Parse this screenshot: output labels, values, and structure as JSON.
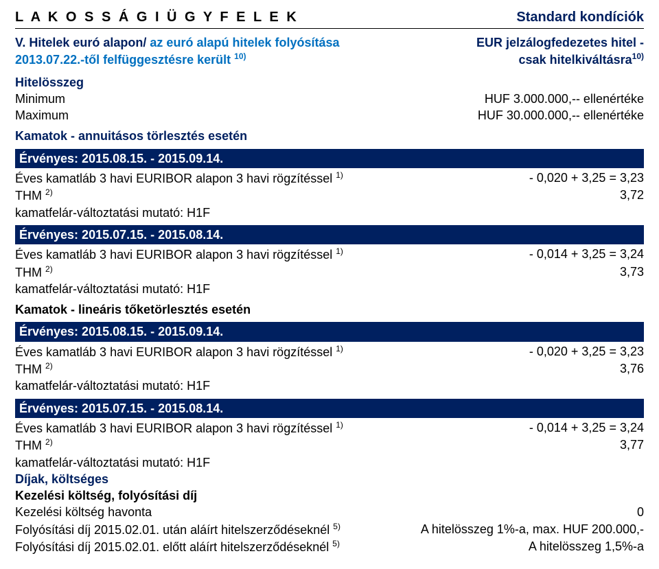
{
  "colors": {
    "dark_blue": "#002060",
    "blue": "#0070c0",
    "text": "#000000",
    "white": "#ffffff"
  },
  "header": {
    "left": "L A K O S S Á G I  Ü G Y F E L E K",
    "right": "Standard kondíciók"
  },
  "intro": {
    "left_line1_a": "V. Hitelek euró alapon/",
    "left_line1_b": "az euró alapú hitelek folyósítása",
    "left_line2_a": "2013.07.22.-től felfüggesztésre került",
    "left_line2_sup": "10)",
    "right_line1": "EUR jelzálogfedezetes hitel -",
    "right_line2_a": "csak hitelkiváltásra",
    "right_line2_sup": "10)"
  },
  "amount": {
    "title": "Hitelösszeg",
    "min_label": "Minimum",
    "min_value": "HUF 3.000.000,-- ellenértéke",
    "max_label": "Maximum",
    "max_value": "HUF 30.000.000,-- ellenértéke"
  },
  "annuity_header": "Kamatok - annuitásos törlesztés esetén",
  "valid1": "Érvényes:    2015.08.15. - 2015.09.14.",
  "rate_row_label_a": "Éves kamatláb 3 havi EURIBOR alapon 3 havi rögzítéssel",
  "rate_row_label_sup": "1)",
  "thm_label_a": "THM",
  "thm_label_sup": "2)",
  "mutato": "kamatfelár-változtatási mutató: H1F",
  "ann1_rate": "- 0,020 + 3,25 = 3,23",
  "ann1_thm": "3,72",
  "valid2": "Érvényes:    2015.07.15. - 2015.08.14.",
  "ann2_rate": "- 0,014 + 3,25 = 3,24",
  "ann2_thm": "3,73",
  "linear_header": "Kamatok - lineáris tőketörlesztés esetén",
  "valid3": "Érvényes:    2015.08.15. - 2015.09.14.",
  "lin1_rate": "- 0,020 + 3,25 = 3,23",
  "lin1_thm": "3,76",
  "valid4": "Érvényes:    2015.07.15. - 2015.08.14.",
  "lin2_rate": "- 0,014 + 3,25 = 3,24",
  "lin2_thm": "3,77",
  "fees": {
    "title": "Díjak, költséges",
    "sub1": "Kezelési költség, folyósítási díj",
    "row1_label": "Kezelési költség havonta",
    "row1_value": "0",
    "row2_label_a": "Folyósítási díj 2015.02.01. után aláírt hitelszerződéseknél",
    "row2_label_sup": "5)",
    "row2_value": "A hitelösszeg 1%-a, max. HUF 200.000,-",
    "row3_label_a": "Folyósítási díj 2015.02.01. előtt aláírt hitelszerződéseknél",
    "row3_label_sup": "5)",
    "row3_value": "A hitelösszeg 1,5%-a"
  }
}
